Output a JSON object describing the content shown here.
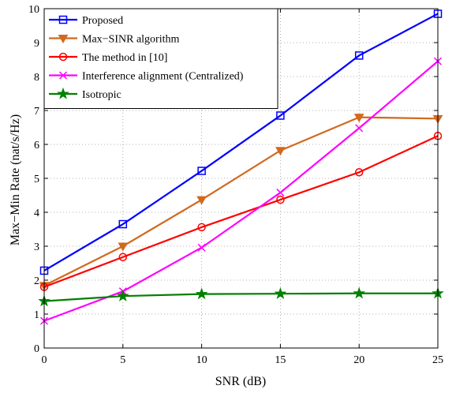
{
  "chart_data": {
    "type": "line",
    "xlabel": "SNR (dB)",
    "ylabel": "Max−Min Rate (nat/s/Hz)",
    "xlim": [
      0,
      25
    ],
    "ylim": [
      0,
      10
    ],
    "x_ticks": [
      0,
      5,
      10,
      15,
      20,
      25
    ],
    "y_ticks": [
      0,
      1,
      2,
      3,
      4,
      5,
      6,
      7,
      8,
      9,
      10
    ],
    "grid": true,
    "legend_position": "top-left",
    "x": [
      0,
      5,
      10,
      15,
      20,
      25
    ],
    "series": [
      {
        "name": "Proposed",
        "color": "#0000ff",
        "marker": "square",
        "values": [
          2.28,
          3.65,
          5.22,
          6.85,
          8.62,
          9.85
        ]
      },
      {
        "name": "Max−SINR algorithm",
        "color": "#d2691e",
        "marker": "triangle-down",
        "values": [
          1.84,
          3.0,
          4.37,
          5.82,
          6.8,
          6.76
        ]
      },
      {
        "name": "The method in [10]",
        "color": "#ff0000",
        "marker": "circle",
        "values": [
          1.8,
          2.68,
          3.56,
          4.37,
          5.18,
          6.25
        ]
      },
      {
        "name": "Interference alignment (Centralized)",
        "color": "#ff00ff",
        "marker": "x",
        "values": [
          0.8,
          1.67,
          2.96,
          4.58,
          6.48,
          8.45
        ]
      },
      {
        "name": "Isotropic",
        "color": "#008000",
        "marker": "star",
        "values": [
          1.38,
          1.53,
          1.59,
          1.6,
          1.61,
          1.61
        ]
      }
    ]
  }
}
